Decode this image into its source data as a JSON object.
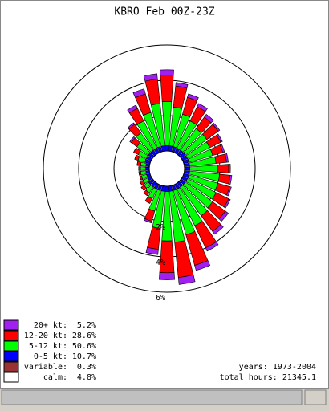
{
  "chart_data": {
    "type": "windrose",
    "title": "KBRO Feb 00Z-23Z",
    "categories": [
      null,
      null,
      null,
      null,
      null,
      null,
      null,
      null,
      null,
      null,
      null,
      null,
      null,
      null,
      null,
      null,
      null,
      null,
      null,
      null,
      null,
      null,
      null,
      null,
      null,
      null,
      null,
      null,
      null,
      null,
      null,
      null,
      null,
      null,
      null,
      null
    ],
    "series": [
      {
        "name": "0-5 kt:",
        "color": "#0000ff",
        "values": [
          0.3,
          0.3,
          0.3,
          0.3,
          0.3,
          0.3,
          0.3,
          0.3,
          0.3,
          0.3,
          0.3,
          0.3,
          0.3,
          0.3,
          0.3,
          0.3,
          0.3,
          0.3,
          0.3,
          0.3,
          0.3,
          0.3,
          0.3,
          0.2,
          0.2,
          0.2,
          0.2,
          0.2,
          0.3,
          0.3,
          0.3,
          0.3,
          0.3,
          0.3,
          0.3,
          0.3
        ]
      },
      {
        "name": "5-12 kt:",
        "color": "#00ff00",
        "values": [
          2.2,
          1.9,
          1.7,
          1.5,
          1.5,
          1.4,
          1.4,
          1.5,
          1.6,
          1.7,
          1.7,
          1.8,
          1.9,
          2.0,
          2.3,
          2.6,
          2.9,
          2.8,
          2.1,
          1.2,
          0.6,
          0.4,
          0.3,
          0.3,
          0.3,
          0.3,
          0.3,
          0.3,
          0.4,
          0.5,
          0.8,
          1.2,
          1.7,
          2.0,
          2.4,
          2.5
        ]
      },
      {
        "name": "12-20 kt:",
        "color": "#ff0000",
        "values": [
          1.2,
          1.0,
          0.9,
          0.8,
          0.8,
          0.7,
          0.6,
          0.6,
          0.6,
          0.6,
          0.7,
          0.8,
          0.9,
          1.1,
          1.4,
          1.8,
          2.0,
          1.8,
          1.2,
          0.6,
          0.3,
          0.2,
          0.2,
          0.2,
          0.1,
          0.1,
          0.1,
          0.2,
          0.2,
          0.3,
          0.4,
          0.6,
          0.8,
          1.1,
          1.4,
          1.5
        ]
      },
      {
        "name": "20+ kt:",
        "color": "#a020f0",
        "values": [
          0.2,
          0.2,
          0.2,
          0.2,
          0.1,
          0.1,
          0.1,
          0.1,
          0.1,
          0.1,
          0.1,
          0.1,
          0.2,
          0.2,
          0.2,
          0.3,
          0.4,
          0.4,
          0.3,
          0.1,
          0,
          0,
          0,
          0,
          0,
          0,
          0,
          0,
          0,
          0,
          0.1,
          0.1,
          0.2,
          0.3,
          0.3,
          0.3
        ]
      }
    ],
    "rticks": [
      {
        "value": 2,
        "label": "2%"
      },
      {
        "value": 4,
        "label": "4%"
      },
      {
        "value": 6,
        "label": "6%"
      }
    ],
    "legend": [
      {
        "label": "20+ kt:",
        "value": "5.2%",
        "color": "#a020f0"
      },
      {
        "label": "12-20 kt:",
        "value": "28.6%",
        "color": "#ff0000"
      },
      {
        "label": "5-12 kt:",
        "value": "50.6%",
        "color": "#00ff00"
      },
      {
        "label": "0-5 kt:",
        "value": "10.7%",
        "color": "#0000ff"
      },
      {
        "label": "variable:",
        "value": "0.3%",
        "color": "#993333"
      },
      {
        "label": "calm:",
        "value": "4.8%",
        "color": "#ffffff"
      }
    ],
    "notes": [
      "years: 1973-2004",
      "total hours: 21345.1"
    ]
  }
}
